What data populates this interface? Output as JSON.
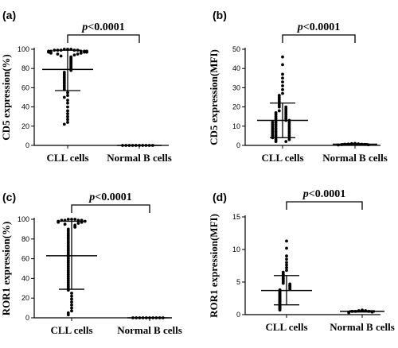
{
  "chart_data": [
    {
      "type": "scatter",
      "panel_label": "(a)",
      "ylabel": "CD5 expression(%)",
      "categories": [
        "CLL cells",
        "Normal B cells"
      ],
      "ylim": [
        0,
        100
      ],
      "yticks": [
        0,
        20,
        40,
        60,
        80,
        100
      ],
      "ytick_labels": [
        "0",
        "20",
        "40",
        "60",
        "80",
        "100"
      ],
      "significance": "p<0.0001",
      "series": [
        {
          "category": "CLL cells",
          "mean": 79,
          "sd_low": 57,
          "sd_high": 99,
          "values": [
            100,
            100,
            100,
            99,
            99,
            99,
            99,
            99,
            98,
            98,
            98,
            98,
            98,
            97,
            97,
            97,
            96,
            96,
            95,
            95,
            94,
            93,
            92,
            91,
            90,
            89,
            88,
            87,
            86,
            85,
            84,
            83,
            82,
            81,
            80,
            79,
            78,
            76,
            74,
            72,
            70,
            68,
            66,
            64,
            62,
            60,
            58,
            55,
            52,
            50,
            47,
            44,
            40,
            36,
            33,
            30,
            27,
            24,
            22
          ]
        },
        {
          "category": "Normal B cells",
          "mean": 0,
          "sd_low": 0,
          "sd_high": 0,
          "values": [
            0,
            0,
            0,
            0,
            0,
            0,
            0,
            0,
            0,
            0
          ]
        }
      ]
    },
    {
      "type": "scatter",
      "panel_label": "(b)",
      "ylabel": "CD5 expression(MFI)",
      "categories": [
        "CLL cells",
        "Normal B cells"
      ],
      "ylim": [
        0,
        50
      ],
      "yticks": [
        0,
        10,
        20,
        30,
        40,
        50
      ],
      "ytick_labels": [
        "0",
        "10",
        "20",
        "30",
        "40",
        "50"
      ],
      "significance": "p<0.0001",
      "series": [
        {
          "category": "CLL cells",
          "mean": 13,
          "sd_low": 4,
          "sd_high": 22,
          "values": [
            46,
            42,
            37,
            35,
            33,
            31,
            29,
            27,
            26,
            25,
            24,
            23,
            22,
            21,
            20,
            20,
            19,
            18,
            18,
            17,
            17,
            16,
            16,
            15,
            15,
            14,
            14,
            13,
            13,
            13,
            12,
            12,
            12,
            11,
            11,
            11,
            10,
            10,
            10,
            9,
            9,
            9,
            8,
            8,
            8,
            7,
            7,
            7,
            6,
            6,
            6,
            5,
            5,
            5,
            4,
            4,
            4,
            3,
            3,
            2,
            2
          ]
        },
        {
          "category": "Normal B cells",
          "mean": 0.6,
          "sd_low": 0.3,
          "sd_high": 0.9,
          "values": [
            1,
            0.9,
            0.8,
            0.7,
            0.6,
            0.6,
            0.5,
            0.4,
            0.3,
            0.2
          ]
        }
      ]
    },
    {
      "type": "scatter",
      "panel_label": "(c)",
      "ylabel": "ROR1 expression(%)",
      "categories": [
        "CLL cells",
        "Normal B cells"
      ],
      "ylim": [
        0,
        100
      ],
      "yticks": [
        0,
        20,
        40,
        60,
        80,
        100
      ],
      "ytick_labels": [
        "0",
        "20",
        "40",
        "60",
        "80",
        "100"
      ],
      "significance": "p<0.0001",
      "series": [
        {
          "category": "CLL cells",
          "mean": 63,
          "sd_low": 29,
          "sd_high": 98,
          "values": [
            100,
            100,
            100,
            99,
            99,
            99,
            99,
            98,
            98,
            97,
            97,
            96,
            95,
            94,
            93,
            92,
            90,
            88,
            86,
            84,
            82,
            80,
            78,
            76,
            74,
            72,
            70,
            68,
            66,
            64,
            62,
            60,
            58,
            56,
            54,
            52,
            50,
            48,
            46,
            44,
            42,
            40,
            38,
            36,
            34,
            32,
            30,
            28,
            25,
            22,
            19,
            16,
            13,
            10,
            7,
            5,
            3
          ]
        },
        {
          "category": "Normal B cells",
          "mean": 0,
          "sd_low": 0,
          "sd_high": 0,
          "values": [
            0,
            0,
            0,
            0,
            0,
            0,
            0,
            0,
            0,
            0
          ]
        }
      ]
    },
    {
      "type": "scatter",
      "panel_label": "(d)",
      "ylabel": "ROR1 expression(MFI)",
      "categories": [
        "CLL cells",
        "Normal B cells"
      ],
      "ylim": [
        0,
        15
      ],
      "yticks": [
        0,
        5,
        10,
        15
      ],
      "ytick_labels": [
        "0",
        "5",
        "10",
        "15"
      ],
      "significance": "p<0.0001",
      "series": [
        {
          "category": "CLL cells",
          "mean": 3.7,
          "sd_low": 1.5,
          "sd_high": 6.0,
          "values": [
            11.3,
            10.2,
            9.0,
            8.5,
            8.0,
            7.6,
            7.2,
            6.8,
            6.5,
            6.2,
            6.0,
            5.8,
            5.6,
            5.4,
            5.2,
            5.0,
            4.8,
            4.7,
            4.5,
            4.4,
            4.3,
            4.1,
            4.0,
            3.9,
            3.8,
            3.7,
            3.6,
            3.5,
            3.4,
            3.3,
            3.2,
            3.1,
            3.0,
            2.9,
            2.8,
            2.7,
            2.6,
            2.5,
            2.4,
            2.3,
            2.2,
            2.1,
            2.0,
            1.9,
            1.8,
            1.7,
            1.6,
            1.5,
            1.4,
            1.3,
            1.2,
            1.1,
            1.0,
            0.9,
            0.8,
            0.7
          ]
        },
        {
          "category": "Normal B cells",
          "mean": 0.5,
          "sd_low": 0.4,
          "sd_high": 0.6,
          "values": [
            0.7,
            0.6,
            0.6,
            0.5,
            0.5,
            0.5,
            0.4,
            0.4,
            0.3
          ]
        }
      ]
    }
  ]
}
